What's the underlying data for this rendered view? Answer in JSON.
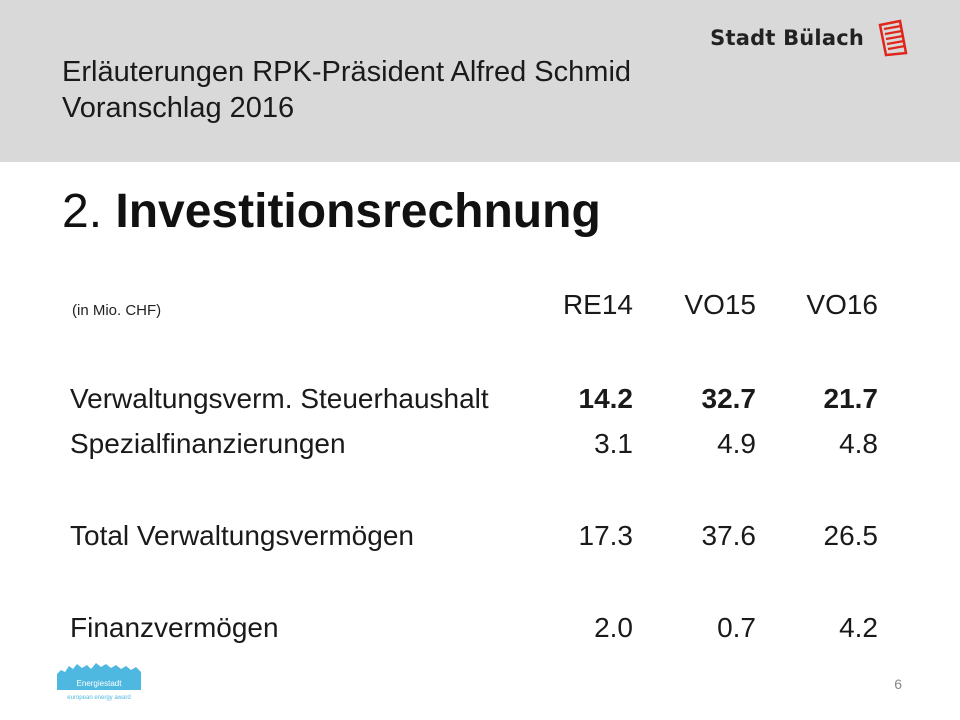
{
  "header": {
    "title_line1": "Erläuterungen RPK-Präsident Alfred Schmid",
    "title_line2": "Voranschlag 2016",
    "brand_name": "Stadt Bülach",
    "background": "#d9d9d9",
    "brand_logo_color": "#e1251b",
    "brand_logo_icon": "flag-logo-icon"
  },
  "slide": {
    "title_number": "2.",
    "title_text": "Investitionsrechnung"
  },
  "table": {
    "unit_label": "(in Mio. CHF)",
    "columns": [
      "RE14",
      "VO15",
      "VO16"
    ],
    "rows": [
      {
        "label": "Verwaltungsverm. Steuerhaushalt",
        "values": [
          "14.2",
          "32.7",
          "21.7"
        ],
        "bold_values": true
      },
      {
        "label": "Spezialfinanzierungen",
        "values": [
          "3.1",
          "4.9",
          "4.8"
        ],
        "bold_values": false
      },
      {
        "label": "Total Verwaltungsvermögen",
        "values": [
          "17.3",
          "37.6",
          "26.5"
        ],
        "bold_values": false
      },
      {
        "label": "Finanzvermögen",
        "values": [
          "2.0",
          "0.7",
          "4.2"
        ],
        "bold_values": false
      }
    ]
  },
  "footer": {
    "page_number": "6",
    "logo_text": "Energiestadt",
    "logo_subtext": "european energy award",
    "logo_color": "#4fb8e0"
  }
}
